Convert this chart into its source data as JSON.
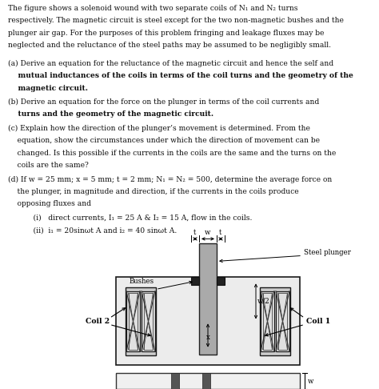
{
  "background_color": "#ffffff",
  "fig_width": 4.74,
  "fig_height": 4.86,
  "dpi": 100,
  "para_lines": [
    "The figure shows a solenoid wound with two separate coils of N₁ and N₂ turns",
    "respectively. The magnetic circuit is steel except for the two non-magnetic bushes and the",
    "plunger air gap. For the purposes of this problem fringing and leakage fluxes may be",
    "neglected and the reluctance of the steel paths may be assumed to be negligibly small."
  ],
  "item_a_lines": [
    "(a) Derive an equation for the reluctance of the magnetic circuit and hence the self and",
    "    mutual inductances of the coils in terms of the coil turns and the geometry of the",
    "    magnetic circuit."
  ],
  "item_a_bold": [
    false,
    true,
    true
  ],
  "item_b_lines": [
    "(b) Derive an equation for the force on the plunger in terms of the coil currents and",
    "    turns and the geometry of the magnetic circuit."
  ],
  "item_b_bold": [
    false,
    true
  ],
  "item_c_lines": [
    "(c) Explain how the direction of the plunger’s movement is determined. From the",
    "    equation, show the circumstances under which the direction of movement can be",
    "    changed. Is this possible if the currents in the coils are the same and the turns on the",
    "    coils are the same?"
  ],
  "item_c_bold": [
    false,
    false,
    false,
    false
  ],
  "item_d_lines": [
    "(d) If w = 25 mm; x = 5 mm; t = 2 mm; N₁ = N₂ = 500, determine the average force on",
    "    the plunger, in magnitude and direction, if the currents in the coils produce",
    "    opposing fluxes and"
  ],
  "item_d_bold": [
    false,
    false,
    false
  ],
  "item_i": "    (i)   direct currents, I₁ = 25 A & I₂ = 15 A, flow in the coils.",
  "item_ii": "    (ii)  i₁ = 20sinωt A and i₂ = 40 sinωt A.",
  "fs": 6.6,
  "lh": 0.0315,
  "indent1": 0.055,
  "indent2": 0.095
}
